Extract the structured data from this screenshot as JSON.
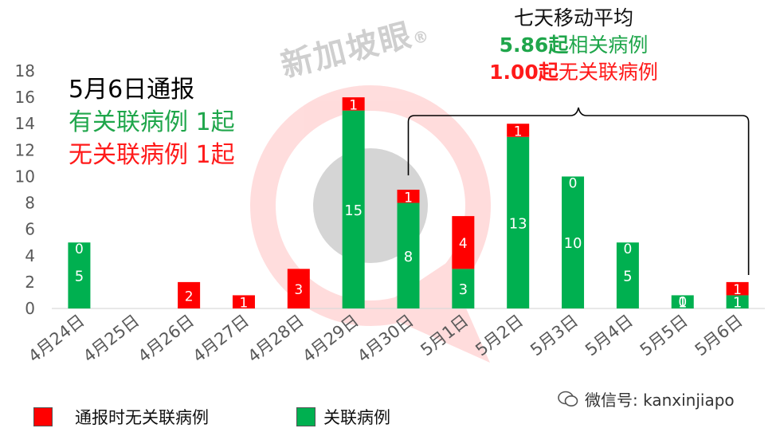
{
  "watermark": {
    "text": "新加坡眼",
    "mark": "®"
  },
  "notice": {
    "title": "5月6日通报",
    "linked_line": "有关联病例 1起",
    "unlinked_line": "无关联病例 1起"
  },
  "seven_day_avg": {
    "title": "七天移动平均",
    "linked_value": "5.86起",
    "linked_label": "相关病例",
    "unlinked_value": "1.00起",
    "unlinked_label": "无关联病例"
  },
  "legend": {
    "unlinked": "通报时无关联病例",
    "linked": "关联病例"
  },
  "wechat": {
    "label": "微信号: kanxinjiapo"
  },
  "colors": {
    "linked": "#00b050",
    "unlinked": "#ff0000",
    "axis": "#d9d9d9",
    "text": "#595959",
    "bracket": "#000000"
  },
  "chart_data": {
    "type": "bar",
    "stacked": true,
    "categories": [
      "4月24日",
      "4月25日",
      "4月26日",
      "4月27日",
      "4月28日",
      "4月29日",
      "4月30日",
      "5月1日",
      "5月2日",
      "5月3日",
      "5月4日",
      "5月5日",
      "5月6日"
    ],
    "series": [
      {
        "name": "关联病例",
        "values": [
          5,
          0,
          0,
          0,
          0,
          15,
          8,
          3,
          13,
          10,
          5,
          1,
          1
        ],
        "color": "#00b050"
      },
      {
        "name": "通报时无关联病例",
        "values": [
          0,
          0,
          2,
          1,
          3,
          1,
          1,
          4,
          1,
          0,
          0,
          0,
          1
        ],
        "color": "#ff0000"
      }
    ],
    "ylim": [
      0,
      18
    ],
    "yticks": [
      0,
      2,
      4,
      6,
      8,
      10,
      12,
      14,
      16,
      18
    ],
    "grid": false,
    "legend_position": "bottom",
    "bracket": {
      "from": "4月30日",
      "to": "5月6日"
    }
  }
}
